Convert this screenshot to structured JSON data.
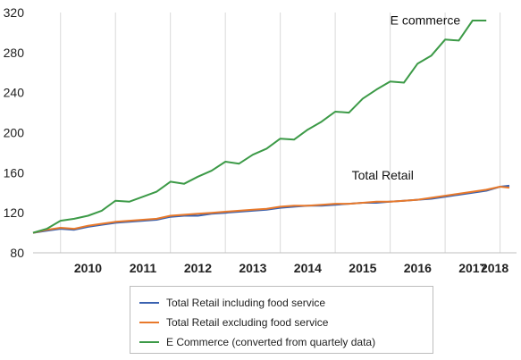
{
  "chart_data": {
    "type": "line",
    "xlabel": "",
    "ylabel": "",
    "xlim": [
      2009.5,
      2018.3
    ],
    "ylim": [
      80,
      320
    ],
    "y_ticks": [
      80,
      120,
      160,
      200,
      240,
      280,
      320
    ],
    "x_tick_labels": [
      "2010",
      "2011",
      "2012",
      "2013",
      "2014",
      "2015",
      "2016",
      "2017",
      "2018"
    ],
    "grid": "vertical",
    "legend_position": "bottom",
    "annotations": [
      {
        "text": "E commerce",
        "x": 2016.0,
        "y": 308
      },
      {
        "text": "Total Retail",
        "x": 2015.3,
        "y": 153
      }
    ],
    "series": [
      {
        "name": "Total Retail including food service",
        "color": "#3a62b0",
        "x": [
          2009.5,
          2009.75,
          2010.0,
          2010.25,
          2010.5,
          2010.75,
          2011.0,
          2011.25,
          2011.5,
          2011.75,
          2012.0,
          2012.25,
          2012.5,
          2012.75,
          2013.0,
          2013.25,
          2013.5,
          2013.75,
          2014.0,
          2014.25,
          2014.5,
          2014.75,
          2015.0,
          2015.25,
          2015.5,
          2015.75,
          2016.0,
          2016.25,
          2016.5,
          2016.75,
          2017.0,
          2017.25,
          2017.5,
          2017.75,
          2018.0,
          2018.17
        ],
        "y": [
          100,
          102,
          104,
          103,
          106,
          108,
          110,
          111,
          112,
          113,
          116,
          117,
          117,
          119,
          120,
          121,
          122,
          123,
          125,
          126,
          127,
          127,
          128,
          129,
          130,
          130,
          131,
          132,
          133,
          134,
          136,
          138,
          140,
          142,
          146,
          147
        ]
      },
      {
        "name": "Total Retail excluding food service",
        "color": "#e8792b",
        "x": [
          2009.5,
          2009.75,
          2010.0,
          2010.25,
          2010.5,
          2010.75,
          2011.0,
          2011.25,
          2011.5,
          2011.75,
          2012.0,
          2012.25,
          2012.5,
          2012.75,
          2013.0,
          2013.25,
          2013.5,
          2013.75,
          2014.0,
          2014.25,
          2014.5,
          2014.75,
          2015.0,
          2015.25,
          2015.5,
          2015.75,
          2016.0,
          2016.25,
          2016.5,
          2016.75,
          2017.0,
          2017.25,
          2017.5,
          2017.75,
          2018.0,
          2018.17
        ],
        "y": [
          100,
          103,
          105,
          104,
          107,
          109,
          111,
          112,
          113,
          114,
          117,
          118,
          119,
          120,
          121,
          122,
          123,
          124,
          126,
          127,
          127,
          128,
          129,
          129,
          130,
          131,
          131,
          132,
          133,
          135,
          137,
          139,
          141,
          143,
          146,
          145
        ]
      },
      {
        "name": "E Commerce (converted from quartely data)",
        "color": "#3c9a47",
        "x": [
          2009.5,
          2009.75,
          2010.0,
          2010.25,
          2010.5,
          2010.75,
          2011.0,
          2011.25,
          2011.5,
          2011.75,
          2012.0,
          2012.25,
          2012.5,
          2012.75,
          2013.0,
          2013.25,
          2013.5,
          2013.75,
          2014.0,
          2014.25,
          2014.5,
          2014.75,
          2015.0,
          2015.25,
          2015.5,
          2015.75,
          2016.0,
          2016.25,
          2016.5,
          2016.75,
          2017.0,
          2017.25,
          2017.5,
          2017.75
        ],
        "y": [
          100,
          104,
          112,
          114,
          117,
          122,
          132,
          131,
          136,
          141,
          151,
          149,
          156,
          162,
          171,
          169,
          178,
          184,
          194,
          193,
          203,
          211,
          221,
          220,
          234,
          243,
          251,
          250,
          269,
          277,
          293,
          292,
          312,
          312
        ]
      }
    ]
  }
}
